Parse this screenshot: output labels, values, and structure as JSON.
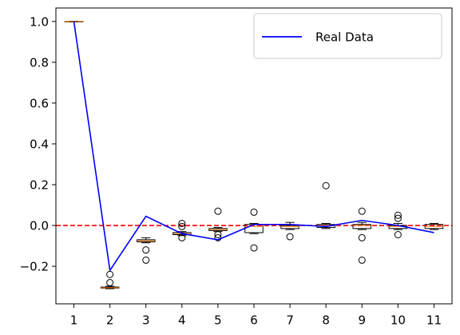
{
  "chart_data": {
    "type": "box",
    "x": [
      1,
      2,
      3,
      4,
      5,
      6,
      7,
      8,
      9,
      10,
      11
    ],
    "xlim": [
      0.5,
      11.5
    ],
    "xticks": [
      1,
      2,
      3,
      4,
      5,
      6,
      7,
      8,
      9,
      10,
      11
    ],
    "ylim": [
      -0.384,
      1.066
    ],
    "yticks": [
      {
        "value": -0.2,
        "label": "−0.2"
      },
      {
        "value": 0,
        "label": "0.0"
      },
      {
        "value": 0.2,
        "label": "0.2"
      },
      {
        "value": 0.4,
        "label": "0.4"
      },
      {
        "value": 0.6,
        "label": "0.6"
      },
      {
        "value": 0.8,
        "label": "0.8"
      },
      {
        "value": 1,
        "label": "1.0"
      }
    ],
    "box_color": "#000000",
    "median_color": "#ff7f0e",
    "boxes": [
      {
        "low": 0.998,
        "q1": 0.999,
        "median": 1.0,
        "q3": 1.0,
        "high": 1.001,
        "outliers": []
      },
      {
        "low": -0.31,
        "q1": -0.307,
        "median": -0.305,
        "q3": -0.302,
        "high": -0.298,
        "outliers": [
          -0.24,
          -0.28
        ]
      },
      {
        "low": -0.085,
        "q1": -0.08,
        "median": -0.075,
        "q3": -0.07,
        "high": -0.06,
        "outliers": [
          -0.12,
          -0.17
        ]
      },
      {
        "low": -0.05,
        "q1": -0.045,
        "median": -0.04,
        "q3": -0.035,
        "high": -0.03,
        "outliers": [
          0.01,
          -0.005,
          -0.06
        ]
      },
      {
        "low": -0.03,
        "q1": -0.025,
        "median": -0.02,
        "q3": -0.015,
        "high": -0.01,
        "outliers": [
          0.07,
          -0.045,
          -0.06
        ]
      },
      {
        "low": -0.04,
        "q1": -0.035,
        "median": -0.005,
        "q3": 0.005,
        "high": 0.01,
        "outliers": [
          0.065,
          -0.11
        ]
      },
      {
        "low": -0.02,
        "q1": -0.015,
        "median": -0.005,
        "q3": 0.0,
        "high": 0.015,
        "outliers": [
          -0.055
        ]
      },
      {
        "low": -0.015,
        "q1": -0.01,
        "median": 0.0,
        "q3": 0.005,
        "high": 0.01,
        "outliers": [
          0.195
        ]
      },
      {
        "low": -0.02,
        "q1": -0.015,
        "median": 0.0,
        "q3": 0.005,
        "high": 0.015,
        "outliers": [
          0.07,
          -0.06,
          -0.17
        ]
      },
      {
        "low": -0.02,
        "q1": -0.015,
        "median": -0.005,
        "q3": 0.0,
        "high": 0.01,
        "outliers": [
          0.05,
          0.035,
          -0.045
        ]
      },
      {
        "low": -0.02,
        "q1": -0.015,
        "median": -0.005,
        "q3": 0.005,
        "high": 0.01,
        "outliers": []
      }
    ],
    "series": [
      {
        "name": "Real Data",
        "color": "#0000ff",
        "values": [
          1.0,
          -0.22,
          0.045,
          -0.04,
          -0.07,
          0.005,
          0.005,
          -0.005,
          0.025,
          0.0,
          -0.035
        ]
      }
    ],
    "hline": {
      "value": 0,
      "color": "#ff0000",
      "style": "dashed"
    },
    "legend": "upper right"
  }
}
